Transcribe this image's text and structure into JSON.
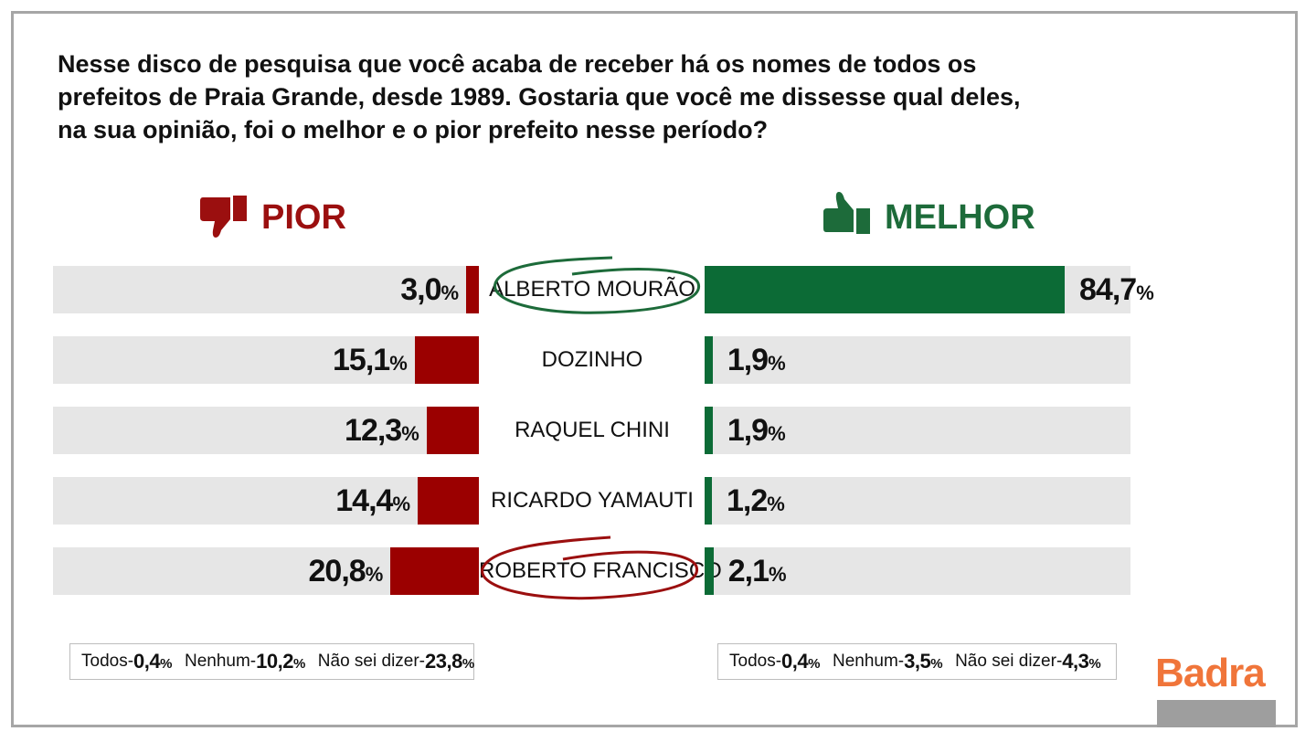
{
  "question": "Nesse disco de pesquisa que você acaba de receber há os nomes de todos os prefeitos de Praia Grande, desde 1989. Gostaria que você me dissesse qual deles, na sua opinião, foi o melhor e o pior prefeito nesse período?",
  "headers": {
    "pior": "PIOR",
    "melhor": "MELHOR"
  },
  "icons": {
    "pior": "thumbs-down-icon",
    "melhor": "thumbs-up-icon"
  },
  "colors": {
    "pior": "#9b0000",
    "melhor": "#0c6b36",
    "row_bg": "#e6e6e6",
    "brand": "#f0753a"
  },
  "chart_data": {
    "type": "bar",
    "categories": [
      "ALBERTO MOURÃO",
      "DOZINHO",
      "RAQUEL CHINI",
      "RICARDO YAMAUTI",
      "ROBERTO FRANCISCO"
    ],
    "series": [
      {
        "name": "PIOR",
        "values": [
          3.0,
          15.1,
          12.3,
          14.4,
          20.8
        ],
        "labels": [
          "3,0",
          "15,1",
          "12,3",
          "14,4",
          "20,8"
        ]
      },
      {
        "name": "MELHOR",
        "values": [
          84.7,
          1.9,
          1.9,
          1.2,
          2.1
        ],
        "labels": [
          "84,7",
          "1,9",
          "1,9",
          "1,2",
          "2,1"
        ]
      }
    ],
    "unit": "%",
    "highlight": {
      "MELHOR": "ALBERTO MOURÃO",
      "PIOR": "ROBERTO FRANCISCO"
    }
  },
  "legends": {
    "pior": [
      {
        "label": "Todos-",
        "value": "0,4"
      },
      {
        "label": "Nenhum-",
        "value": "10,2"
      },
      {
        "label": "Não sei dizer-",
        "value": "23,8"
      }
    ],
    "melhor": [
      {
        "label": "Todos-",
        "value": "0,4"
      },
      {
        "label": "Nenhum-",
        "value": "3,5"
      },
      {
        "label": "Não sei dizer-",
        "value": "4,3"
      }
    ]
  },
  "brand": "Badra"
}
